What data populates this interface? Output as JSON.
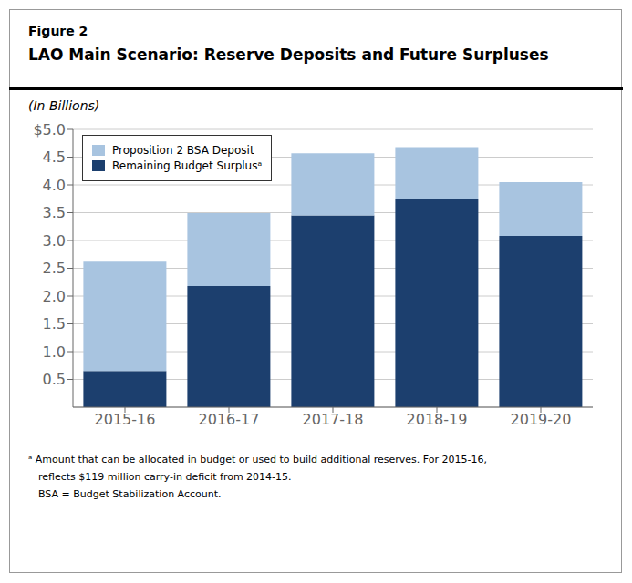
{
  "chart_data": {
    "type": "bar",
    "title": "LAO Main Scenario: Reserve Deposits and Future Surpluses",
    "subtitle": "(In Billions)",
    "annotations": [
      "Figure 2",
      "ᵃ Amount that can be allocated in budget or used to build additional reserves. For 2015-16,",
      "reflects $119 million carry-in deficit from 2014-15.",
      "BSA = Budget Stabilization Account."
    ],
    "categories": [
      "2015-16",
      "2016-17",
      "2017-18",
      "2018-19",
      "2019-20"
    ],
    "series": [
      {
        "name": "Remaining Budget Surplusᵃ",
        "color": "#1c3f6e",
        "values": [
          0.65,
          2.18,
          3.45,
          3.75,
          3.08
        ]
      },
      {
        "name": "Proposition 2 BSA Deposit",
        "color": "#a8c4e0",
        "values": [
          1.97,
          1.31,
          1.12,
          0.93,
          0.97
        ]
      }
    ],
    "stacked": true,
    "ylim": [
      0,
      5.0
    ],
    "yticks": [
      0.5,
      {
        "value": 1,
        "label": "1.0"
      },
      1.5,
      {
        "value": 2,
        "label": "2.0"
      },
      2.5,
      {
        "value": 3,
        "label": "3.0"
      },
      3.5,
      {
        "value": 4,
        "label": "4.0"
      },
      4.5,
      {
        "value": 5,
        "label": "$5.0"
      }
    ],
    "grid": true,
    "legend": "upper left"
  }
}
